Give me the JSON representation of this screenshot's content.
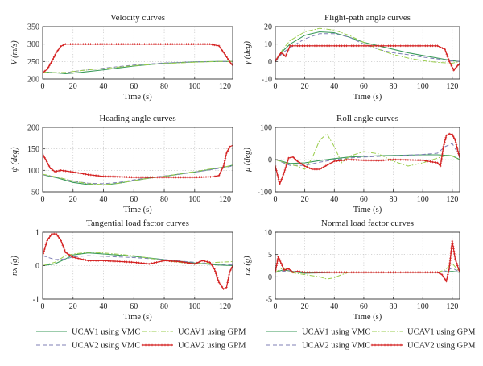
{
  "colors": {
    "vmc1": "#3a9a5a",
    "vmc2": "#7f7fb5",
    "gpm1": "#9acd4c",
    "gpm2": "#d42020"
  },
  "legend_left": [
    {
      "label": "UCAV1 using VMC",
      "series": "vmc1"
    },
    {
      "label": "UCAV2 using VMC",
      "series": "vmc2"
    }
  ],
  "legend_right": [
    {
      "label": "UCAV1 using GPM",
      "series": "gpm1"
    },
    {
      "label": "UCAV2 using GPM",
      "series": "gpm2"
    }
  ],
  "chart_data": [
    {
      "type": "line",
      "title": "Velocity curves",
      "xlabel": "Time (s)",
      "ylabel": "V (m/s)",
      "xlim": [
        0,
        125
      ],
      "ylim": [
        200,
        350
      ],
      "xticks": [
        0,
        20,
        40,
        60,
        80,
        100,
        120
      ],
      "yticks": [
        200,
        250,
        300,
        350
      ],
      "grid": true,
      "series": [
        {
          "name": "UCAV1 using VMC",
          "key": "vmc1",
          "x": [
            0,
            8,
            15,
            25,
            40,
            60,
            80,
            100,
            115,
            125
          ],
          "y": [
            220,
            218,
            215,
            219,
            226,
            237,
            245,
            249,
            250,
            250
          ]
        },
        {
          "name": "UCAV2 using VMC",
          "key": "vmc2",
          "x": [
            0,
            8,
            15,
            25,
            40,
            60,
            80,
            100,
            115,
            125
          ],
          "y": [
            219,
            217,
            218,
            224,
            231,
            240,
            246,
            249,
            250,
            250
          ]
        },
        {
          "name": "UCAV1 using GPM",
          "key": "gpm1",
          "x": [
            0,
            8,
            15,
            25,
            40,
            60,
            80,
            100,
            115,
            125
          ],
          "y": [
            220,
            218,
            219,
            224,
            230,
            238,
            244,
            248,
            250,
            250
          ]
        },
        {
          "name": "UCAV2 using GPM",
          "key": "gpm2",
          "x": [
            0,
            3,
            6,
            9,
            12,
            15,
            20,
            30,
            50,
            70,
            90,
            110,
            116,
            120,
            123,
            125
          ],
          "y": [
            218,
            228,
            250,
            276,
            294,
            300,
            300,
            300,
            300,
            300,
            300,
            300,
            295,
            270,
            250,
            238
          ]
        }
      ]
    },
    {
      "type": "line",
      "title": "Flight-path angle curves",
      "xlabel": "Time (s)",
      "ylabel": "γ (deg)",
      "xlim": [
        0,
        125
      ],
      "ylim": [
        -10,
        20
      ],
      "xticks": [
        0,
        20,
        40,
        60,
        80,
        100,
        120
      ],
      "yticks": [
        -10,
        0,
        10,
        20
      ],
      "grid": true,
      "series": [
        {
          "name": "UCAV1 using VMC",
          "key": "vmc1",
          "x": [
            0,
            5,
            10,
            20,
            30,
            40,
            50,
            60,
            70,
            80,
            90,
            100,
            110,
            120,
            125
          ],
          "y": [
            0,
            6,
            10,
            15,
            17,
            16.5,
            14,
            11,
            9,
            7,
            5,
            3.5,
            2,
            0.5,
            0
          ]
        },
        {
          "name": "UCAV2 using VMC",
          "key": "vmc2",
          "x": [
            0,
            5,
            10,
            20,
            30,
            40,
            50,
            60,
            70,
            80,
            90,
            100,
            110,
            120,
            125
          ],
          "y": [
            0,
            5,
            8,
            13,
            16,
            16,
            14,
            10,
            7,
            5,
            4,
            2.5,
            1.5,
            0.3,
            0
          ]
        },
        {
          "name": "UCAV1 using GPM",
          "key": "gpm1",
          "x": [
            0,
            5,
            10,
            20,
            30,
            40,
            50,
            60,
            70,
            80,
            90,
            100,
            110,
            120,
            125
          ],
          "y": [
            0,
            7,
            12,
            17,
            19,
            18,
            15,
            11,
            7,
            4,
            2,
            0.5,
            -0.5,
            -1,
            0
          ]
        },
        {
          "name": "UCAV2 using GPM",
          "key": "gpm2",
          "x": [
            0,
            2,
            4,
            7,
            10,
            20,
            40,
            60,
            80,
            100,
            110,
            115,
            118,
            121,
            123,
            125
          ],
          "y": [
            0,
            3,
            5,
            3,
            9,
            9,
            9,
            9,
            9,
            9,
            9,
            7,
            0,
            -5,
            -3,
            -1
          ]
        }
      ]
    },
    {
      "type": "line",
      "title": "Heading angle curves",
      "xlabel": "Time (s)",
      "ylabel": "ψ (deg)",
      "xlim": [
        0,
        125
      ],
      "ylim": [
        50,
        200
      ],
      "xticks": [
        0,
        20,
        40,
        60,
        80,
        100,
        120
      ],
      "yticks": [
        50,
        100,
        150,
        200
      ],
      "grid": true,
      "series": [
        {
          "name": "UCAV1 using VMC",
          "key": "vmc1",
          "x": [
            0,
            10,
            20,
            30,
            40,
            50,
            60,
            70,
            80,
            90,
            100,
            110,
            120,
            125
          ],
          "y": [
            90,
            82,
            72,
            67,
            66,
            70,
            76,
            82,
            86,
            91,
            96,
            102,
            108,
            112
          ]
        },
        {
          "name": "UCAV2 using VMC",
          "key": "vmc2",
          "x": [
            0,
            10,
            20,
            30,
            40,
            50,
            60,
            70,
            80,
            90,
            100,
            110,
            120,
            125
          ],
          "y": [
            90,
            84,
            75,
            70,
            69,
            72,
            78,
            83,
            87,
            91,
            96,
            101,
            107,
            110
          ]
        },
        {
          "name": "UCAV1 using GPM",
          "key": "gpm1",
          "x": [
            0,
            10,
            20,
            30,
            40,
            50,
            60,
            70,
            80,
            90,
            100,
            110,
            120,
            125
          ],
          "y": [
            91,
            84,
            75,
            69,
            67,
            70,
            76,
            82,
            86,
            92,
            97,
            103,
            108,
            112
          ]
        },
        {
          "name": "UCAV2 using GPM",
          "key": "gpm2",
          "x": [
            0,
            2,
            5,
            8,
            12,
            20,
            30,
            40,
            60,
            80,
            100,
            112,
            116,
            119,
            121,
            123,
            125
          ],
          "y": [
            138,
            125,
            105,
            97,
            100,
            96,
            90,
            86,
            84,
            84,
            84,
            85,
            88,
            110,
            140,
            155,
            158
          ]
        }
      ]
    },
    {
      "type": "line",
      "title": "Roll angle curves",
      "xlabel": "Time (s)",
      "ylabel": "μ (deg)",
      "xlim": [
        0,
        125
      ],
      "ylim": [
        -100,
        100
      ],
      "xticks": [
        0,
        20,
        40,
        60,
        80,
        100,
        120
      ],
      "yticks": [
        -100,
        0,
        100
      ],
      "grid": true,
      "series": [
        {
          "name": "UCAV1 using VMC",
          "key": "vmc1",
          "x": [
            0,
            10,
            20,
            30,
            40,
            50,
            60,
            70,
            80,
            90,
            100,
            110,
            120,
            125
          ],
          "y": [
            0,
            -12,
            -10,
            -3,
            3,
            8,
            10,
            12,
            13,
            14,
            15,
            15,
            12,
            0
          ]
        },
        {
          "name": "UCAV2 using VMC",
          "key": "vmc2",
          "x": [
            0,
            10,
            20,
            30,
            40,
            50,
            60,
            70,
            80,
            90,
            100,
            110,
            115,
            120,
            125
          ],
          "y": [
            0,
            -18,
            -18,
            -8,
            0,
            5,
            8,
            10,
            12,
            14,
            16,
            20,
            40,
            50,
            10
          ]
        },
        {
          "name": "UCAV1 using GPM",
          "key": "gpm1",
          "x": [
            0,
            10,
            15,
            20,
            25,
            30,
            35,
            40,
            45,
            50,
            60,
            70,
            80,
            90,
            100,
            110,
            118,
            125
          ],
          "y": [
            0,
            -15,
            -20,
            -30,
            5,
            60,
            80,
            40,
            -10,
            10,
            25,
            18,
            -5,
            -20,
            -10,
            5,
            15,
            0
          ]
        },
        {
          "name": "UCAV2 using GPM",
          "key": "gpm2",
          "x": [
            0,
            3,
            6,
            9,
            12,
            15,
            20,
            25,
            30,
            40,
            50,
            60,
            70,
            80,
            100,
            110,
            112,
            114,
            116,
            118,
            120,
            122,
            125
          ],
          "y": [
            -20,
            -75,
            -40,
            5,
            8,
            -5,
            -20,
            -30,
            -30,
            -5,
            0,
            -2,
            -3,
            0,
            -2,
            -10,
            -20,
            40,
            75,
            80,
            78,
            60,
            5
          ]
        }
      ]
    },
    {
      "type": "line",
      "title": "Tangential load factor curves",
      "xlabel": "Time (s)",
      "ylabel": "nx (g)",
      "xlim": [
        0,
        125
      ],
      "ylim": [
        -1,
        1
      ],
      "xticks": [
        0,
        20,
        40,
        60,
        80,
        100,
        120
      ],
      "yticks": [
        -1,
        0,
        1
      ],
      "grid": true,
      "series": [
        {
          "name": "UCAV1 using VMC",
          "key": "vmc1",
          "x": [
            0,
            8,
            15,
            20,
            30,
            40,
            60,
            80,
            100,
            115,
            125
          ],
          "y": [
            0,
            0.05,
            0.2,
            0.32,
            0.38,
            0.35,
            0.28,
            0.18,
            0.08,
            0.02,
            0
          ]
        },
        {
          "name": "UCAV2 using VMC",
          "key": "vmc2",
          "x": [
            0,
            8,
            15,
            20,
            30,
            40,
            60,
            80,
            100,
            115,
            125
          ],
          "y": [
            0.3,
            0.18,
            0.2,
            0.26,
            0.3,
            0.28,
            0.24,
            0.18,
            0.1,
            0.04,
            0.02
          ]
        },
        {
          "name": "UCAV1 using GPM",
          "key": "gpm1",
          "x": [
            0,
            8,
            15,
            20,
            30,
            40,
            60,
            80,
            100,
            115,
            125
          ],
          "y": [
            0,
            0.1,
            0.3,
            0.35,
            0.4,
            0.38,
            0.3,
            0.15,
            0.05,
            0.1,
            0.12
          ]
        },
        {
          "name": "UCAV2 using GPM",
          "key": "gpm2",
          "x": [
            0,
            3,
            6,
            9,
            12,
            15,
            20,
            30,
            40,
            60,
            70,
            80,
            90,
            100,
            105,
            110,
            113,
            116,
            119,
            121,
            123,
            125
          ],
          "y": [
            0.3,
            0.75,
            0.95,
            0.95,
            0.75,
            0.4,
            0.25,
            0.15,
            0.15,
            0.1,
            0.05,
            0.15,
            0.12,
            0.05,
            0.15,
            0.1,
            -0.1,
            -0.5,
            -0.7,
            -0.65,
            -0.2,
            0
          ]
        }
      ]
    },
    {
      "type": "line",
      "title": "Normal load factor curves",
      "xlabel": "Time (s)",
      "ylabel": "nz (g)",
      "xlim": [
        0,
        125
      ],
      "ylim": [
        -5,
        10
      ],
      "xticks": [
        0,
        20,
        40,
        60,
        80,
        100,
        120
      ],
      "yticks": [
        -5,
        0,
        5,
        10
      ],
      "grid": true,
      "series": [
        {
          "name": "UCAV1 using VMC",
          "key": "vmc1",
          "x": [
            0,
            5,
            10,
            15,
            20,
            30,
            40,
            60,
            80,
            100,
            110,
            115,
            120,
            125
          ],
          "y": [
            1,
            1.5,
            1.3,
            1,
            0.8,
            0.9,
            1,
            1,
            1,
            1,
            1,
            1.1,
            1.2,
            1
          ]
        },
        {
          "name": "UCAV2 using VMC",
          "key": "vmc2",
          "x": [
            0,
            5,
            10,
            15,
            20,
            30,
            40,
            60,
            80,
            100,
            110,
            115,
            120,
            125
          ],
          "y": [
            1,
            1.2,
            1.4,
            1.2,
            1,
            0.9,
            1,
            1,
            1,
            1,
            1,
            1.2,
            2,
            1
          ]
        },
        {
          "name": "UCAV1 using GPM",
          "key": "gpm1",
          "x": [
            0,
            5,
            10,
            20,
            30,
            35,
            40,
            45,
            50,
            60,
            80,
            100,
            110,
            115,
            120,
            125
          ],
          "y": [
            1,
            2,
            1,
            0.5,
            0,
            -0.5,
            -0.2,
            0.5,
            1,
            1,
            1,
            1,
            1,
            1.5,
            3,
            1
          ]
        },
        {
          "name": "UCAV2 using GPM",
          "key": "gpm2",
          "x": [
            0,
            2,
            4,
            6,
            9,
            12,
            15,
            20,
            30,
            40,
            60,
            80,
            100,
            110,
            113,
            116,
            118,
            120,
            122,
            125
          ],
          "y": [
            1,
            4.5,
            3,
            1.5,
            1.8,
            1,
            1.2,
            1,
            1,
            1,
            1,
            1,
            1,
            1,
            0.5,
            -1,
            2,
            8,
            4,
            1
          ]
        }
      ]
    }
  ]
}
